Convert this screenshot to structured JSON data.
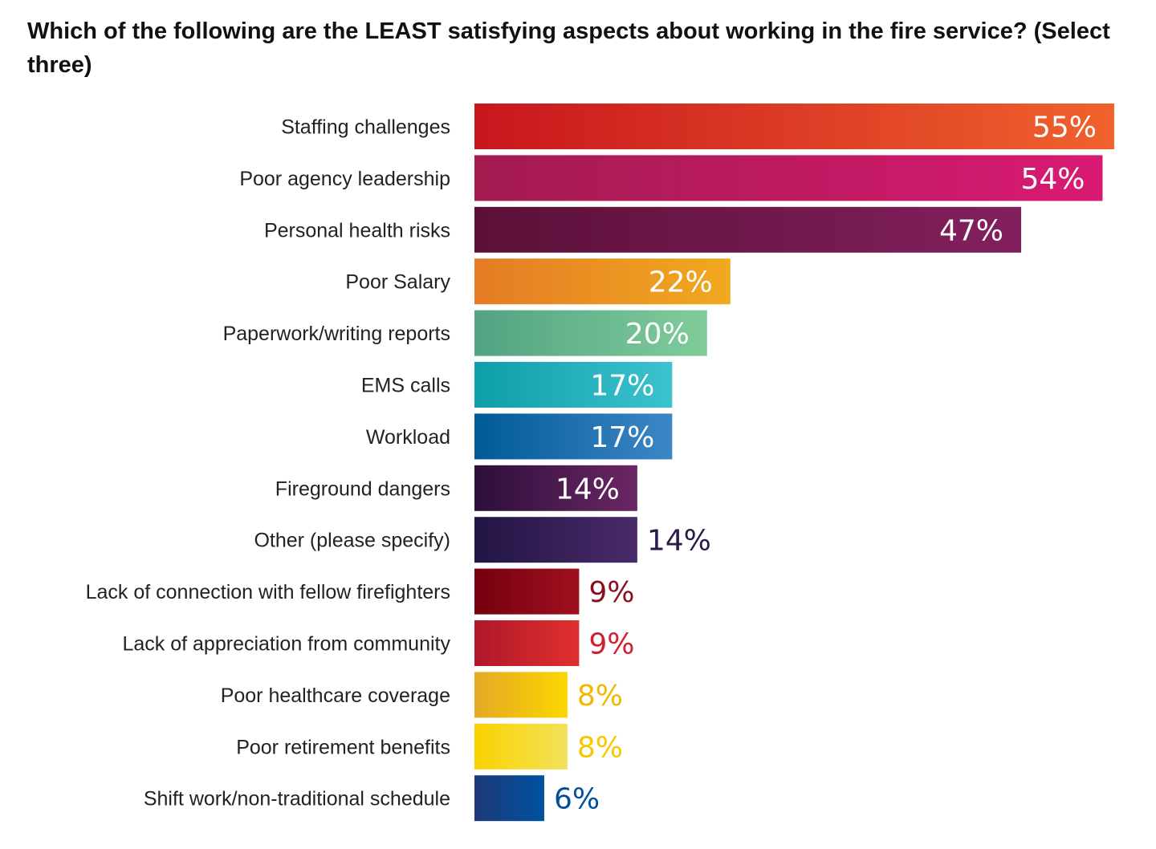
{
  "chart_data": {
    "type": "bar",
    "orientation": "horizontal",
    "title": "Which of the following are the LEAST satisfying aspects about working in the fire service? (Select three)",
    "categories": [
      "Staffing challenges",
      "Poor agency leadership",
      "Personal health risks",
      "Poor Salary",
      "Paperwork/writing reports",
      "EMS calls",
      "Workload",
      "Fireground dangers",
      "Other (please specify)",
      "Lack of connection with fellow firefighters",
      "Lack of appreciation from community",
      "Poor healthcare coverage",
      "Poor retirement benefits",
      "Shift work/non-traditional schedule"
    ],
    "values": [
      55,
      54,
      47,
      22,
      20,
      17,
      17,
      14,
      14,
      9,
      9,
      8,
      8,
      6
    ],
    "value_labels": [
      "55%",
      "54%",
      "47%",
      "22%",
      "20%",
      "17%",
      "17%",
      "14%",
      "14%",
      "9%",
      "9%",
      "8%",
      "8%",
      "6%"
    ],
    "unit": "%",
    "grid": false,
    "colors": [
      [
        "#c8161d",
        "#f0622d"
      ],
      [
        "#a31b50",
        "#d91a73"
      ],
      [
        "#5c1038",
        "#82205e"
      ],
      [
        "#e57b25",
        "#f0a91f"
      ],
      [
        "#52a383",
        "#80cc9a"
      ],
      [
        "#0d9ea8",
        "#3dc2cf"
      ],
      [
        "#005a98",
        "#3d86c6"
      ],
      [
        "#2c0f3a",
        "#6b2665"
      ],
      [
        "#221544",
        "#4a2a6a"
      ],
      [
        "#75000f",
        "#a0101f"
      ],
      [
        "#b0172a",
        "#e0302e"
      ],
      [
        "#e5a826",
        "#fbd600"
      ],
      [
        "#fad200",
        "#f2e25a"
      ],
      [
        "#1e3a78",
        "#0050a0"
      ]
    ],
    "label_colors": [
      "#ffffff",
      "#ffffff",
      "#ffffff",
      "#ffffff",
      "#ffffff",
      "#ffffff",
      "#ffffff",
      "#ffffff",
      "#2a1a4a",
      "#8a0f1f",
      "#d01f2e",
      "#f0b900",
      "#f5c800",
      "#0050a0"
    ]
  }
}
